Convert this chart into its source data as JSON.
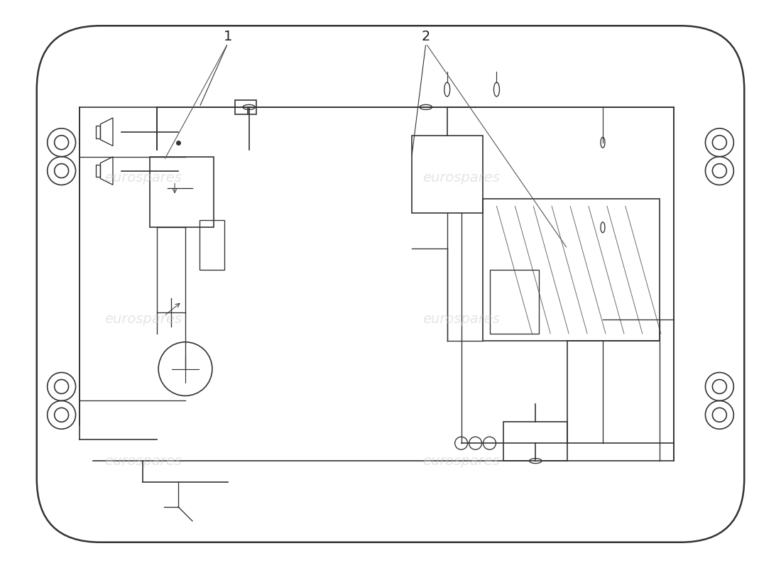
{
  "bg_color": "#ffffff",
  "line_color": "#333333",
  "watermark_color": "#cccccc",
  "watermark_texts": [
    "eurospares",
    "eurospares",
    "eurospares",
    "eurospares",
    "eurospares",
    "eurospares"
  ],
  "label1": "1",
  "label2": "2",
  "fig_width": 11.0,
  "fig_height": 8.0
}
